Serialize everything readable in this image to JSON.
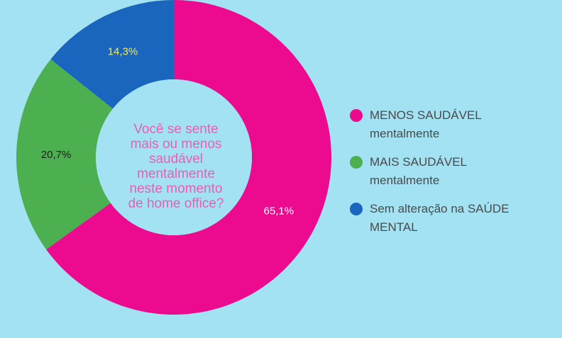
{
  "chart_data": {
    "type": "pie",
    "donut": true,
    "title": "Você se sente mais ou menos saudável mentalmente neste momento de home office?",
    "title_lines": [
      "Você se sente",
      "mais ou menos",
      "saudável",
      "mentalmente",
      "neste momento",
      "de home office?"
    ],
    "categories": [
      "MENOS SAUDÁVEL mentalmente",
      "MAIS SAUDÁVEL mentalmente",
      "Sem alteração na SAÚDE MENTAL"
    ],
    "values": [
      65.1,
      20.7,
      14.3
    ],
    "data_labels": [
      "65,1%",
      "20,7%",
      "14,3%"
    ],
    "colors": [
      "#ec0a8e",
      "#4caf50",
      "#1a66bf"
    ],
    "label_colors": [
      "#ffffff",
      "#1d1d1d",
      "#f2e85c"
    ],
    "legend": {
      "placement": "right",
      "entries": [
        {
          "line1": "MENOS SAUDÁVEL",
          "line2": "mentalmente"
        },
        {
          "line1": "MAIS SAUDÁVEL",
          "line2": "mentalmente"
        },
        {
          "line1": "Sem alteração na SAÚDE",
          "line2": "MENTAL"
        }
      ]
    },
    "title_color": "#e85fb7",
    "background": "#a2e2f2"
  }
}
